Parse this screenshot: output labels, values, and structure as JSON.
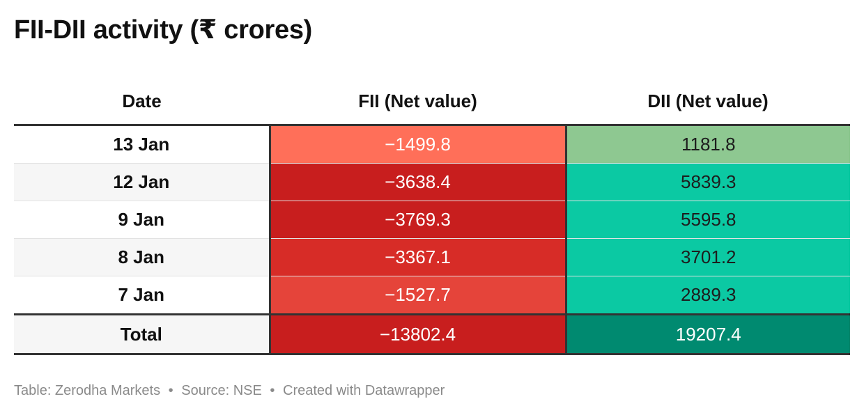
{
  "title": "FII-DII activity (₹ crores)",
  "chart_data": {
    "type": "table",
    "title": "FII-DII activity (₹ crores)",
    "columns": [
      "Date",
      "FII (Net value)",
      "DII (Net value)"
    ],
    "rows": [
      {
        "date": "13 Jan",
        "fii": "−1499.8",
        "dii": "1181.8",
        "fii_value": -1499.8,
        "dii_value": 1181.8
      },
      {
        "date": "12 Jan",
        "fii": "−3638.4",
        "dii": "5839.3",
        "fii_value": -3638.4,
        "dii_value": 5839.3
      },
      {
        "date": "9 Jan",
        "fii": "−3769.3",
        "dii": "5595.8",
        "fii_value": -3769.3,
        "dii_value": 5595.8
      },
      {
        "date": "8 Jan",
        "fii": "−3367.1",
        "dii": "3701.2",
        "fii_value": -3367.1,
        "dii_value": 3701.2
      },
      {
        "date": "7 Jan",
        "fii": "−1527.7",
        "dii": "2889.3",
        "fii_value": -1527.7,
        "dii_value": 2889.3
      }
    ],
    "total": {
      "date": "Total",
      "fii": "−13802.4",
      "dii": "19207.4",
      "fii_value": -13802.4,
      "dii_value": 19207.4
    }
  },
  "colors": {
    "fii_row_fills": [
      "#ff6f59",
      "#c81e1e",
      "#c81e1e",
      "#d72c27",
      "#e5443a"
    ],
    "dii_row_fills": [
      "#8ec891",
      "#0bc9a3",
      "#0bc9a3",
      "#0bc9a3",
      "#0bc9a3"
    ],
    "fii_row_text": [
      "#ffffff",
      "#ffffff",
      "#ffffff",
      "#ffffff",
      "#ffffff"
    ],
    "dii_row_text": [
      "#1d1d1d",
      "#1d1d1d",
      "#1d1d1d",
      "#1d1d1d",
      "#1d1d1d"
    ],
    "date_row_fills": [
      "#ffffff",
      "#f6f6f6",
      "#ffffff",
      "#f6f6f6",
      "#ffffff"
    ],
    "total_date_fill": "#f6f6f6",
    "total_fii_fill": "#c81e1e",
    "total_dii_fill": "#008a70",
    "total_fii_text": "#ffffff",
    "total_dii_text": "#ffffff"
  },
  "footer": {
    "table_credit": "Table: Zerodha Markets",
    "separator": "•",
    "source": "Source: NSE",
    "created": "Created with Datawrapper"
  }
}
